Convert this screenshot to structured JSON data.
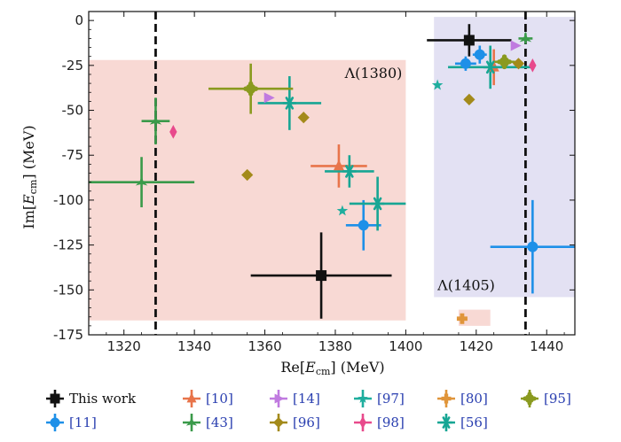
{
  "chart_data": {
    "type": "scatter",
    "xlabel_pre": "Re[",
    "xlabel_var": "E",
    "xlabel_sub": "cm",
    "xlabel_post": "] (MeV)",
    "ylabel_pre": "Im[",
    "ylabel_var": "E",
    "ylabel_sub": "cm",
    "ylabel_post": "] (MeV)",
    "xlim": [
      1310,
      1448
    ],
    "ylim": [
      -175,
      5
    ],
    "x_ticks": [
      1320,
      1340,
      1360,
      1380,
      1400,
      1420,
      1440
    ],
    "y_ticks": [
      0,
      -25,
      -50,
      -75,
      -100,
      -125,
      -150,
      -175
    ],
    "regions": [
      {
        "label": "Λ(1380)",
        "x": [
          1310,
          1400
        ],
        "y": [
          -167,
          -22
        ],
        "color": "#f8d9d4"
      },
      {
        "label": "Λ(1405)",
        "x": [
          1408,
          1448
        ],
        "y": [
          -154,
          2
        ],
        "color": "#e3e1f3"
      },
      {
        "label": "",
        "x": [
          1415,
          1424
        ],
        "y": [
          -170,
          -161
        ],
        "color": "#f8d9d4"
      }
    ],
    "vlines": [
      1329,
      1434
    ],
    "series": [
      {
        "name": "This work",
        "color": "#111111",
        "marker": "square",
        "points": [
          {
            "x": 1376,
            "y": -142,
            "xerr": 20,
            "yerr": 24
          },
          {
            "x": 1418,
            "y": -11,
            "xerr": 12,
            "yerr": 9
          }
        ]
      },
      {
        "name": "[11]",
        "color": "#1e90e8",
        "marker": "circle",
        "points": [
          {
            "x": 1388,
            "y": -114,
            "xerr": 5,
            "yerr": 14
          },
          {
            "x": 1436,
            "y": -126,
            "xerr": 12,
            "yerr": 26
          },
          {
            "x": 1417,
            "y": -24,
            "xerr": 3,
            "yerr": 4
          },
          {
            "x": 1421,
            "y": -19,
            "xerr": 2,
            "yerr": 5
          }
        ]
      },
      {
        "name": "[10]",
        "color": "#e8744a",
        "marker": "triangle",
        "points": [
          {
            "x": 1381,
            "y": -81,
            "xerr": 8,
            "yerr": 12
          },
          {
            "x": 1425,
            "y": -26,
            "xerr": 3,
            "yerr": 10
          }
        ]
      },
      {
        "name": "[43]",
        "color": "#3a9a4a",
        "marker": "tristar",
        "points": [
          {
            "x": 1325,
            "y": -90,
            "xerr": 15,
            "yerr": 14
          },
          {
            "x": 1329,
            "y": -56,
            "xerr": 4,
            "yerr": 13
          },
          {
            "x": 1434,
            "y": -10,
            "xerr": 2,
            "yerr": 3
          }
        ]
      },
      {
        "name": "[14]",
        "color": "#c07ae0",
        "marker": "tri-right",
        "points": [
          {
            "x": 1361,
            "y": -43
          },
          {
            "x": 1431,
            "y": -14
          }
        ]
      },
      {
        "name": "[96]",
        "color": "#a38a1a",
        "marker": "diamond",
        "points": [
          {
            "x": 1355,
            "y": -86
          },
          {
            "x": 1371,
            "y": -54
          },
          {
            "x": 1418,
            "y": -44
          },
          {
            "x": 1432,
            "y": -24
          }
        ]
      },
      {
        "name": "[97]",
        "color": "#1fae9e",
        "marker": "star",
        "points": [
          {
            "x": 1382,
            "y": -106
          },
          {
            "x": 1409,
            "y": -36
          }
        ]
      },
      {
        "name": "[98]",
        "color": "#e84a8c",
        "marker": "thin-diamond",
        "points": [
          {
            "x": 1334,
            "y": -62
          },
          {
            "x": 1436,
            "y": -25
          }
        ]
      },
      {
        "name": "[80]",
        "color": "#e0953a",
        "marker": "plus",
        "points": [
          {
            "x": 1416,
            "y": -166
          }
        ]
      },
      {
        "name": "[56]",
        "color": "#17a694",
        "marker": "asterisk",
        "points": [
          {
            "x": 1384,
            "y": -84,
            "xerr": 7,
            "yerr": 9
          },
          {
            "x": 1392,
            "y": -102,
            "xerr": 8,
            "yerr": 15
          },
          {
            "x": 1367,
            "y": -46,
            "xerr": 9,
            "yerr": 15
          },
          {
            "x": 1424,
            "y": -26,
            "xerr": 12,
            "yerr": 12
          }
        ]
      },
      {
        "name": "[95]",
        "color": "#8a9a1f",
        "marker": "hex",
        "points": [
          {
            "x": 1356,
            "y": -38,
            "xerr": 12,
            "yerr": 14
          },
          {
            "x": 1428,
            "y": -23,
            "xerr": 3,
            "yerr": 3
          }
        ]
      }
    ],
    "legend": [
      {
        "series": "This work",
        "label": "This work"
      },
      {
        "series": "[11]",
        "label": "[11]"
      },
      {
        "series": "[10]",
        "label": "[10]"
      },
      {
        "series": "[43]",
        "label": "[43]"
      },
      {
        "series": "[14]",
        "label": "[14]"
      },
      {
        "series": "[96]",
        "label": "[96]"
      },
      {
        "series": "[97]",
        "label": "[97]"
      },
      {
        "series": "[98]",
        "label": "[98]"
      },
      {
        "series": "[80]",
        "label": "[80]"
      },
      {
        "series": "[56]",
        "label": "[56]"
      },
      {
        "series": "[95]",
        "label": "[95]"
      }
    ]
  }
}
